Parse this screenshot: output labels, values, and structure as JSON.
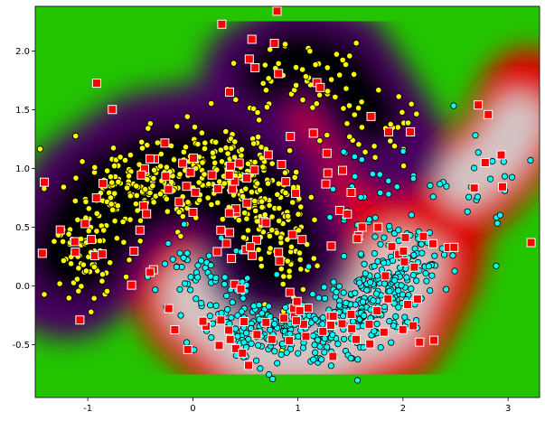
{
  "chart_data": {
    "type": "scatter",
    "title": "",
    "xlabel": "",
    "ylabel": "",
    "xlim": [
      -1.5,
      3.3
    ],
    "ylim": [
      -0.95,
      2.38
    ],
    "x_ticks": [
      "-1",
      "0",
      "1",
      "2",
      "3"
    ],
    "y_ticks": [
      "-0.5",
      "0.0",
      "0.5",
      "1.0",
      "1.5",
      "2.0"
    ],
    "x_tick_values": [
      -1,
      0,
      1,
      2,
      3
    ],
    "y_tick_values": [
      -0.5,
      0.0,
      0.5,
      1.0,
      1.5,
      2.0
    ],
    "background": "decision-function contour, colormap nipy_spectral (black/purple/blue/cyan/green/yellow/red/grey)",
    "grid": false,
    "legend": "none",
    "series": [
      {
        "marker": "circle",
        "color": "#ffff00",
        "edge_color": "#000000",
        "clusters": [
          {
            "cx": -1.0,
            "cy": 0.35,
            "sx": 0.22,
            "sy": 0.28,
            "n": 90
          },
          {
            "cx": -0.55,
            "cy": 0.85,
            "sx": 0.25,
            "sy": 0.18,
            "n": 110
          },
          {
            "cx": 0.1,
            "cy": 1.0,
            "sx": 0.28,
            "sy": 0.18,
            "n": 130
          },
          {
            "cx": 0.55,
            "cy": 0.85,
            "sx": 0.25,
            "sy": 0.2,
            "n": 90
          },
          {
            "cx": 0.85,
            "cy": 0.4,
            "sx": 0.15,
            "sy": 0.3,
            "n": 90
          },
          {
            "cx": 0.85,
            "cy": 1.75,
            "sx": 0.35,
            "sy": 0.25,
            "n": 40
          },
          {
            "cx": 1.5,
            "cy": 1.6,
            "sx": 0.2,
            "sy": 0.3,
            "n": 30
          },
          {
            "cx": 1.95,
            "cy": 1.25,
            "sx": 0.15,
            "sy": 0.15,
            "n": 15
          }
        ]
      },
      {
        "marker": "circle",
        "color": "#00ffff",
        "edge_color": "#000000",
        "clusters": [
          {
            "cx": 0.15,
            "cy": 0.1,
            "sx": 0.25,
            "sy": 0.15,
            "n": 60
          },
          {
            "cx": 0.55,
            "cy": -0.35,
            "sx": 0.25,
            "sy": 0.12,
            "n": 90
          },
          {
            "cx": 1.1,
            "cy": -0.4,
            "sx": 0.3,
            "sy": 0.15,
            "n": 130
          },
          {
            "cx": 1.6,
            "cy": -0.2,
            "sx": 0.25,
            "sy": 0.15,
            "n": 110
          },
          {
            "cx": 1.95,
            "cy": 0.15,
            "sx": 0.2,
            "sy": 0.18,
            "n": 120
          },
          {
            "cx": 1.55,
            "cy": 0.75,
            "sx": 0.2,
            "sy": 0.2,
            "n": 20
          },
          {
            "cx": 2.6,
            "cy": 0.85,
            "sx": 0.3,
            "sy": 0.3,
            "n": 35
          }
        ]
      },
      {
        "marker": "square",
        "color": "#ff0000",
        "edge_color": "#ffffff",
        "clusters": [
          {
            "cx": -0.8,
            "cy": 0.45,
            "sx": 0.35,
            "sy": 0.45,
            "n": 25
          },
          {
            "cx": 0.15,
            "cy": 0.95,
            "sx": 0.35,
            "sy": 0.15,
            "n": 20
          },
          {
            "cx": 0.7,
            "cy": 0.5,
            "sx": 0.3,
            "sy": 0.25,
            "n": 25
          },
          {
            "cx": 0.7,
            "cy": 1.9,
            "sx": 0.3,
            "sy": 0.2,
            "n": 10
          },
          {
            "cx": 0.6,
            "cy": -0.35,
            "sx": 0.4,
            "sy": 0.15,
            "n": 25
          },
          {
            "cx": 1.5,
            "cy": -0.3,
            "sx": 0.4,
            "sy": 0.15,
            "n": 20
          },
          {
            "cx": 1.9,
            "cy": 0.3,
            "sx": 0.2,
            "sy": 0.2,
            "n": 15
          },
          {
            "cx": 1.3,
            "cy": 0.95,
            "sx": 0.2,
            "sy": 0.2,
            "n": 10
          },
          {
            "cx": 1.9,
            "cy": 1.4,
            "sx": 0.2,
            "sy": 0.1,
            "n": 3
          },
          {
            "cx": 2.8,
            "cy": 1.1,
            "sx": 0.3,
            "sy": 0.4,
            "n": 8
          }
        ]
      }
    ]
  }
}
